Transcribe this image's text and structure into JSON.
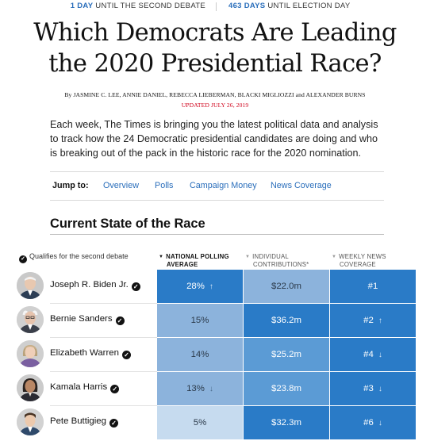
{
  "countdown": {
    "debate_num": "1 DAY",
    "debate_text": " UNTIL THE SECOND DEBATE",
    "election_num": "463 DAYS",
    "election_text": " UNTIL ELECTION DAY"
  },
  "headline": {
    "line1": "Which Democrats Are Leading",
    "line2": "the 2020 Presidential Race?"
  },
  "byline": "By JASMINE C. LEE, ANNIE DANIEL, REBECCA LIEBERMAN, BLACKI MIGLIOZZI and ALEXANDER BURNS",
  "updated": "UPDATED JULY 26, 2019",
  "intro": "Each week, The Times is bringing you the latest political data and analysis to track how the 24 Democratic presidential candidates are doing and who is breaking out of the pack in the historic race for the 2020 nomination.",
  "jump": {
    "label": "Jump to:",
    "links": [
      "Overview",
      "Polls",
      "Campaign Money",
      "News Coverage"
    ]
  },
  "section_title": "Current State of the Race",
  "table": {
    "qualifies_label": "Qualifies for the second debate",
    "columns": [
      {
        "line1": "NATIONAL POLLING",
        "line2": "AVERAGE",
        "active": true
      },
      {
        "line1": "INDIVIDUAL",
        "line2": "CONTRIBUTIONS*",
        "active": false
      },
      {
        "line1": "WEEKLY NEWS",
        "line2": "COVERAGE",
        "active": false
      }
    ],
    "rows": [
      {
        "name": "Joseph R. Biden Jr.",
        "qualifies": true,
        "polling": "28%",
        "polling_trend": "up",
        "polling_level": 5,
        "contributions": "$22.0m",
        "contrib_level": 3,
        "coverage": "#1",
        "coverage_trend": "",
        "coverage_level": 5
      },
      {
        "name": "Bernie Sanders",
        "qualifies": true,
        "polling": "15%",
        "polling_trend": "",
        "polling_level": 3,
        "contributions": "$36.2m",
        "contrib_level": 5,
        "coverage": "#2",
        "coverage_trend": "up",
        "coverage_level": 5
      },
      {
        "name": "Elizabeth Warren",
        "qualifies": true,
        "polling": "14%",
        "polling_trend": "",
        "polling_level": 3,
        "contributions": "$25.2m",
        "contrib_level": 4,
        "coverage": "#4",
        "coverage_trend": "down",
        "coverage_level": 5
      },
      {
        "name": "Kamala Harris",
        "qualifies": true,
        "polling": "13%",
        "polling_trend": "down",
        "polling_level": 3,
        "contributions": "$23.8m",
        "contrib_level": 4,
        "coverage": "#3",
        "coverage_trend": "down",
        "coverage_level": 5
      },
      {
        "name": "Pete Buttigieg",
        "qualifies": true,
        "polling": "5%",
        "polling_trend": "",
        "polling_level": 1,
        "contributions": "$32.3m",
        "contrib_level": 5,
        "coverage": "#6",
        "coverage_trend": "down",
        "coverage_level": 5
      }
    ]
  },
  "colors": {
    "link": "#2a6ebb",
    "updated": "#d0021b",
    "level_1": "#c6dbef",
    "level_3": "#8cb3dc",
    "level_4": "#5b9bd5",
    "level_5": "#2a7bc7"
  },
  "icons": {
    "check": "check-circle-icon",
    "up": "arrow-up-icon",
    "down": "arrow-down-icon",
    "sort": "caret-down-icon"
  }
}
